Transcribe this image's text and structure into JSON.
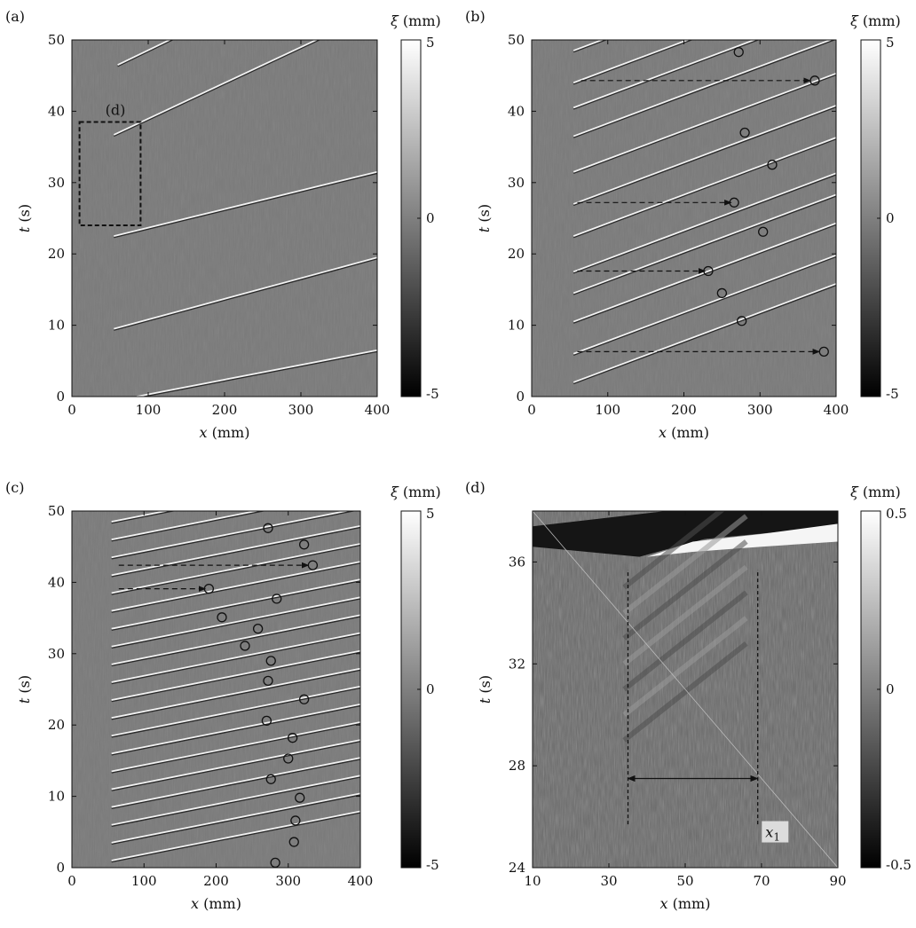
{
  "chart_data": [
    {
      "type": "heatmap",
      "panel_label": "(a)",
      "xlabel_var": "x",
      "xlabel_unit": "(mm)",
      "ylabel_var": "t",
      "ylabel_unit": "(s)",
      "xlim": [
        0,
        400
      ],
      "ylim": [
        0,
        50
      ],
      "xticks": [
        "0",
        "100",
        "200",
        "300",
        "400"
      ],
      "yticks": [
        "0",
        "10",
        "20",
        "30",
        "40",
        "50"
      ],
      "colorbar": {
        "var": "ξ",
        "unit": "(mm)",
        "ticks": [
          "5",
          "0",
          "-5"
        ],
        "range": [
          -5,
          5
        ]
      },
      "fronts": [
        {
          "x": [
            60,
            400
          ],
          "t": [
            46.5,
            64.0
          ]
        },
        {
          "x": [
            55,
            400
          ],
          "t": [
            36.7,
            54.0
          ]
        },
        {
          "x": [
            55,
            400
          ],
          "t": [
            22.5,
            31.5
          ]
        },
        {
          "x": [
            55,
            400
          ],
          "t": [
            9.5,
            19.5
          ]
        },
        {
          "x": [
            85,
            400
          ],
          "t": [
            0,
            6.5
          ]
        }
      ],
      "annotation_box": {
        "label": "(d)",
        "x": [
          10,
          90
        ],
        "t": [
          24,
          38.5
        ]
      }
    },
    {
      "type": "heatmap",
      "panel_label": "(b)",
      "xlabel_var": "x",
      "xlabel_unit": "(mm)",
      "ylabel_var": "t",
      "ylabel_unit": "(s)",
      "xlim": [
        0,
        400
      ],
      "ylim": [
        0,
        50
      ],
      "xticks": [
        "0",
        "100",
        "200",
        "300",
        "400"
      ],
      "yticks": [
        "0",
        "10",
        "20",
        "30",
        "40",
        "50"
      ],
      "colorbar": {
        "var": "ξ",
        "unit": "(mm)",
        "ticks": [
          "5",
          "0",
          "-5"
        ],
        "range": [
          -5,
          5
        ]
      },
      "front_starts_t": [
        2.0,
        6.0,
        10.5,
        14.5,
        17.5,
        22.5,
        27.0,
        31.5,
        36.5,
        40.5,
        44.0,
        48.5
      ],
      "front_slope_s_per_mm": 0.04,
      "circles": [
        {
          "x": 272,
          "t": 48.3
        },
        {
          "x": 372,
          "t": 44.3
        },
        {
          "x": 280,
          "t": 37.0
        },
        {
          "x": 316,
          "t": 32.5
        },
        {
          "x": 266,
          "t": 27.2
        },
        {
          "x": 304,
          "t": 23.1
        },
        {
          "x": 232,
          "t": 17.6
        },
        {
          "x": 250,
          "t": 14.5
        },
        {
          "x": 276,
          "t": 10.6
        },
        {
          "x": 384,
          "t": 6.3
        }
      ],
      "arrows": [
        {
          "x0": 65,
          "x1": 366,
          "t": 44.3
        },
        {
          "x0": 60,
          "x1": 262,
          "t": 27.2
        },
        {
          "x0": 60,
          "x1": 228,
          "t": 17.6
        },
        {
          "x0": 60,
          "x1": 378,
          "t": 6.3
        }
      ]
    },
    {
      "type": "heatmap",
      "panel_label": "(c)",
      "xlabel_var": "x",
      "xlabel_unit": "(mm)",
      "ylabel_var": "t",
      "ylabel_unit": "(s)",
      "xlim": [
        0,
        400
      ],
      "ylim": [
        0,
        50
      ],
      "xticks": [
        "0",
        "100",
        "200",
        "300",
        "400"
      ],
      "yticks": [
        "0",
        "10",
        "20",
        "30",
        "40",
        "50"
      ],
      "colorbar": {
        "var": "ξ",
        "unit": "(mm)",
        "ticks": [
          "5",
          "0",
          "-5"
        ],
        "range": [
          -5,
          5
        ]
      },
      "front_starts_t": [
        1.0,
        3.5,
        6.0,
        8.5,
        11.0,
        13.5,
        16.0,
        18.5,
        21.0,
        23.5,
        26.0,
        28.5,
        31.0,
        33.5,
        36.0,
        38.5,
        41.0,
        43.5,
        46.0,
        48.5
      ],
      "front_slope_s_per_mm": 0.02,
      "circles": [
        {
          "x": 272,
          "t": 47.6
        },
        {
          "x": 322,
          "t": 45.3
        },
        {
          "x": 334,
          "t": 42.4
        },
        {
          "x": 190,
          "t": 39.1
        },
        {
          "x": 284,
          "t": 37.7
        },
        {
          "x": 208,
          "t": 35.1
        },
        {
          "x": 258,
          "t": 33.5
        },
        {
          "x": 240,
          "t": 31.1
        },
        {
          "x": 276,
          "t": 29.0
        },
        {
          "x": 272,
          "t": 26.2
        },
        {
          "x": 322,
          "t": 23.6
        },
        {
          "x": 270,
          "t": 20.6
        },
        {
          "x": 306,
          "t": 18.2
        },
        {
          "x": 300,
          "t": 15.3
        },
        {
          "x": 276,
          "t": 12.4
        },
        {
          "x": 316,
          "t": 9.8
        },
        {
          "x": 310,
          "t": 6.6
        },
        {
          "x": 308,
          "t": 3.6
        },
        {
          "x": 282,
          "t": 0.7
        }
      ],
      "arrows": [
        {
          "x0": 65,
          "x1": 328,
          "t": 42.4
        },
        {
          "x0": 65,
          "x1": 185,
          "t": 39.1
        }
      ]
    },
    {
      "type": "heatmap",
      "panel_label": "(d)",
      "xlabel_var": "x",
      "xlabel_unit": "(mm)",
      "ylabel_var": "t",
      "ylabel_unit": "(s)",
      "xlim": [
        10,
        90
      ],
      "ylim": [
        24,
        38
      ],
      "xticks": [
        "10",
        "30",
        "50",
        "70",
        "90"
      ],
      "yticks": [
        "24",
        "28",
        "32",
        "36"
      ],
      "colorbar": {
        "var": "ξ",
        "unit": "(mm)",
        "ticks": [
          "0.5",
          "0",
          "-0.5"
        ],
        "range": [
          -0.5,
          0.5
        ]
      },
      "front": {
        "x": [
          10,
          90
        ],
        "t": [
          36.3,
          37.4
        ]
      },
      "dashed_lines_x": [
        35,
        69
      ],
      "dashed_t_range": [
        25.7,
        35.7
      ],
      "double_arrow": {
        "x0": 35,
        "x1": 69,
        "t": 27.5
      },
      "x1_label": {
        "var": "x",
        "sub": "1"
      }
    }
  ]
}
